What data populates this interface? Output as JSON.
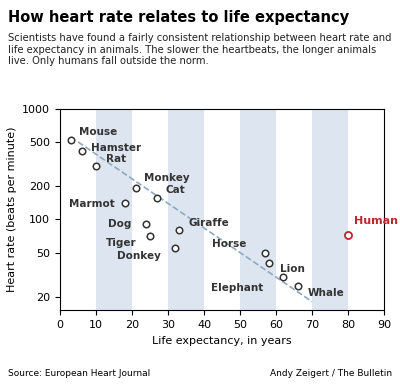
{
  "chart_data": {
    "type": "scatter",
    "title": "How heart rate relates to life expectancy",
    "subtitle": "Scientists have found a fairly consistent relationship between heart rate and life expectancy in animals. The slower the heartbeats, the longer animals live. Only humans fall outside the norm.",
    "x_label": "Life expectancy, in years",
    "y_label": "Heart rate (beats per minute)",
    "source": "Source: European Heart Journal",
    "credit": "Andy Zeigert / The Bulletin",
    "log": "y",
    "xlim": [
      0,
      90
    ],
    "xticks": [
      0,
      10,
      20,
      30,
      40,
      50,
      60,
      70,
      80,
      90
    ],
    "ylim": [
      15,
      1000
    ],
    "yticks": [
      20,
      50,
      100,
      200,
      500,
      1000
    ],
    "color": "#333333",
    "marker": "circle",
    "points": [
      {
        "label": "Mouse",
        "x": 3,
        "y": 520
      },
      {
        "label": "Hamster",
        "x": 6,
        "y": 410
      },
      {
        "label": "Rat",
        "x": 10,
        "y": 300
      },
      {
        "label": "Monkey",
        "x": 21,
        "y": 190
      },
      {
        "label": "Marmot",
        "x": 18,
        "y": 140
      },
      {
        "label": "Cat",
        "x": 27,
        "y": 155
      },
      {
        "label": "Dog",
        "x": 24,
        "y": 90
      },
      {
        "label": "Giraffe",
        "x": 33,
        "y": 80
      },
      {
        "label": "Tiger",
        "x": 25,
        "y": 70
      },
      {
        "label": "Donkey",
        "x": 32,
        "y": 55
      },
      {
        "label": "Horse",
        "x": 57,
        "y": 50
      },
      {
        "label": "Lion",
        "x": 58,
        "y": 40
      },
      {
        "label": "Elephant",
        "x": 62,
        "y": 30
      },
      {
        "label": "Whale",
        "x": 66,
        "y": 25
      }
    ],
    "highlight": {
      "label": "Human",
      "x": 80,
      "y": 72,
      "color": "#c0272d"
    },
    "trend_line": {
      "x": [
        5,
        70
      ],
      "y": [
        500,
        18
      ],
      "color": "#8fa8c0",
      "line_style": "dashed"
    }
  }
}
